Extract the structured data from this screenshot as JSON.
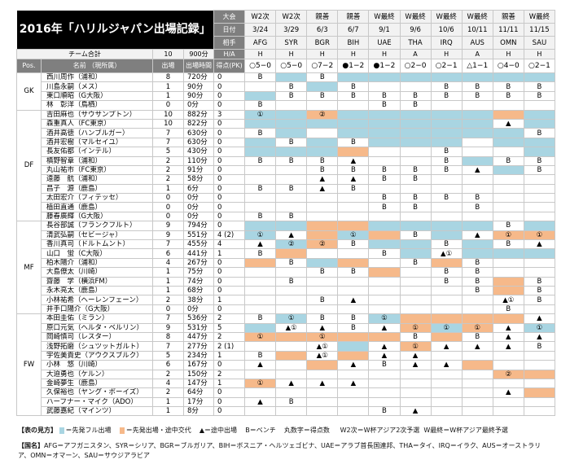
{
  "title": "2016年「ハリルジャパン出場記録」",
  "header_labels": {
    "competition": "大会",
    "date": "日付",
    "opponent": "相手",
    "home_away": "H/A"
  },
  "team_total": {
    "label": "チーム合計",
    "apps": "10",
    "minutes": "900分"
  },
  "column_headers": {
    "pos": "Pos.",
    "name": "名前 （現所属）",
    "apps": "出場",
    "minutes": "出場時間",
    "goals": "得点(PK)"
  },
  "matches": [
    {
      "comp": "W2次",
      "date": "3/24",
      "opp": "AFG",
      "ha": "H",
      "result": "○5−0"
    },
    {
      "comp": "W2次",
      "date": "3/29",
      "opp": "SYR",
      "ha": "H",
      "result": "○5−0"
    },
    {
      "comp": "親善",
      "date": "6/3",
      "opp": "BGR",
      "ha": "H",
      "result": "○7−2"
    },
    {
      "comp": "親善",
      "date": "6/7",
      "opp": "BIH",
      "ha": "H",
      "result": "●1−2"
    },
    {
      "comp": "W最終",
      "date": "9/1",
      "opp": "UAE",
      "ha": "H",
      "result": "●1−2"
    },
    {
      "comp": "W最終",
      "date": "9/6",
      "opp": "THA",
      "ha": "A",
      "result": "○2−0"
    },
    {
      "comp": "W最終",
      "date": "10/6",
      "opp": "IRQ",
      "ha": "H",
      "result": "○2−1"
    },
    {
      "comp": "W最終",
      "date": "10/11",
      "opp": "AUS",
      "ha": "A",
      "result": "△1−1"
    },
    {
      "comp": "親善",
      "date": "11/11",
      "opp": "OMN",
      "ha": "H",
      "result": "○4−0"
    },
    {
      "comp": "W最終",
      "date": "11/15",
      "opp": "SAU",
      "ha": "H",
      "result": "○2−1"
    }
  ],
  "colors": {
    "full_start": "#a9d5e2",
    "start_subbed": "#f6b98a",
    "header_dark": "#7f7f7f",
    "title_bg": "#000000"
  },
  "groups": [
    {
      "pos": "GK",
      "players": [
        {
          "name": "西川周作（浦和）",
          "apps": "8",
          "min": "720分",
          "goals": "0",
          "cells": [
            "B",
            "F",
            "B",
            "F",
            "F",
            "F",
            "F",
            "F",
            "F",
            "F"
          ]
        },
        {
          "name": "川島永嗣（メス）",
          "apps": "1",
          "min": "90分",
          "goals": "0",
          "cells": [
            "",
            "B",
            "F",
            "B",
            "",
            "",
            "B",
            "B",
            "B",
            "B"
          ]
        },
        {
          "name": "東口順昭（G大阪）",
          "apps": "1",
          "min": "90分",
          "goals": "0",
          "cells": [
            "F",
            "B",
            "B",
            "B",
            "B",
            "B",
            "B",
            "B",
            "B",
            "B"
          ]
        },
        {
          "name": "林　彰洋（鳥栖）",
          "apps": "0",
          "min": "0分",
          "goals": "0",
          "cells": [
            "B",
            "",
            "",
            "",
            "B",
            "B",
            "",
            "",
            "",
            ""
          ]
        }
      ]
    },
    {
      "pos": "DF",
      "players": [
        {
          "name": "吉田麻也（サウサンプトン）",
          "apps": "10",
          "min": "882分",
          "goals": "3",
          "cells": [
            "F①",
            "F",
            "S②",
            "F",
            "F",
            "F",
            "F",
            "F",
            "S",
            "F"
          ]
        },
        {
          "name": "森重真人（FC東京）",
          "apps": "10",
          "min": "822分",
          "goals": "0",
          "cells": [
            "F",
            "F",
            "F",
            "F",
            "F",
            "F",
            "F",
            "F",
            "▲",
            "F"
          ]
        },
        {
          "name": "酒井高徳（ハンブルガー）",
          "apps": "7",
          "min": "630分",
          "goals": "0",
          "cells": [
            "B",
            "F",
            "",
            "F",
            "F",
            "F",
            "F",
            "F",
            "F",
            "B"
          ]
        },
        {
          "name": "酒井宏樹（マルセイユ）",
          "apps": "7",
          "min": "630分",
          "goals": "0",
          "cells": [
            "F",
            "B",
            "F",
            "B",
            "F",
            "F",
            "F",
            "",
            "F",
            "F"
          ]
        },
        {
          "name": "長友佑都（インテル）",
          "apps": "5",
          "min": "430分",
          "goals": "0",
          "cells": [
            "F",
            "F",
            "F",
            "S",
            "",
            "",
            "B",
            "",
            "",
            "F"
          ]
        },
        {
          "name": "槙野智章（浦和）",
          "apps": "2",
          "min": "110分",
          "goals": "0",
          "cells": [
            "B",
            "B",
            "B",
            "▲",
            "",
            "",
            "B",
            "F",
            "B",
            "B"
          ]
        },
        {
          "name": "丸山祐市（FC東京）",
          "apps": "2",
          "min": "91分",
          "goals": "0",
          "cells": [
            "",
            "",
            "B",
            "B",
            "B",
            "B",
            "B",
            "▲",
            "F",
            "B"
          ]
        },
        {
          "name": "遠藤　航（浦和）",
          "apps": "2",
          "min": "58分",
          "goals": "0",
          "cells": [
            "",
            "",
            "▲",
            "▲",
            "B",
            "B",
            "",
            "",
            "",
            ""
          ]
        },
        {
          "name": "昌子　源（鹿島）",
          "apps": "1",
          "min": "6分",
          "goals": "0",
          "cells": [
            "B",
            "B",
            "▲",
            "B",
            "",
            "",
            "",
            "",
            "",
            ""
          ]
        },
        {
          "name": "太田宏介（フィテッセ）",
          "apps": "0",
          "min": "0分",
          "goals": "0",
          "cells": [
            "",
            "",
            "",
            "",
            "B",
            "B",
            "B",
            "B",
            "",
            ""
          ]
        },
        {
          "name": "植田直通（鹿島）",
          "apps": "0",
          "min": "0分",
          "goals": "0",
          "cells": [
            "",
            "",
            "",
            "",
            "B",
            "B",
            "",
            "B",
            "",
            ""
          ]
        },
        {
          "name": "藤春廣輝（G大阪）",
          "apps": "0",
          "min": "0分",
          "goals": "0",
          "cells": [
            "B",
            "B",
            "",
            "",
            "",
            "",
            "",
            "",
            "",
            ""
          ]
        }
      ]
    },
    {
      "pos": "MF",
      "players": [
        {
          "name": "長谷部誠（フランクフルト）",
          "apps": "9",
          "min": "794分",
          "goals": "0",
          "cells": [
            "F",
            "F",
            "S",
            "S",
            "F",
            "F",
            "F",
            "F",
            "B",
            "F"
          ]
        },
        {
          "name": "清武弘嗣（セビージャ）",
          "apps": "9",
          "min": "551分",
          "goals": "4 (2)",
          "cells": [
            "F①",
            "▲",
            "S",
            "F①",
            "S",
            "B",
            "F",
            "▲",
            "S①",
            "S①"
          ]
        },
        {
          "name": "香川真司（ドルトムント）",
          "apps": "7",
          "min": "455分",
          "goals": "4",
          "cells": [
            "▲",
            "F②",
            "S②",
            "B",
            "F",
            "F",
            "B",
            "F",
            "B",
            "▲"
          ]
        },
        {
          "name": "山口　蛍（C大阪）",
          "apps": "6",
          "min": "441分",
          "goals": "1",
          "cells": [
            "B",
            "S",
            "",
            "",
            "B",
            "F",
            "▲①",
            "F",
            "F",
            "F"
          ]
        },
        {
          "name": "柏木陽介（浦和）",
          "apps": "4",
          "min": "267分",
          "goals": "0",
          "cells": [
            "S",
            "B",
            "F",
            "S",
            "",
            "B",
            "S",
            "B",
            "",
            ""
          ]
        },
        {
          "name": "大島僚太（川崎）",
          "apps": "1",
          "min": "75分",
          "goals": "0",
          "cells": [
            "",
            "",
            "B",
            "B",
            "S",
            "",
            "B",
            "B",
            "",
            ""
          ]
        },
        {
          "name": "齋藤　学（横浜FM）",
          "apps": "1",
          "min": "74分",
          "goals": "0",
          "cells": [
            "",
            "B",
            "",
            "",
            "",
            "",
            "B",
            "B",
            "S",
            "B"
          ]
        },
        {
          "name": "永木亮太（鹿島）",
          "apps": "1",
          "min": "68分",
          "goals": "0",
          "cells": [
            "",
            "",
            "",
            "",
            "",
            "",
            "",
            "B",
            "S",
            "B"
          ]
        },
        {
          "name": "小林祐希（ヘーレンフェーン）",
          "apps": "2",
          "min": "38分",
          "goals": "1",
          "cells": [
            "",
            "",
            "B",
            "▲",
            "",
            "",
            "",
            "",
            "▲①",
            "B"
          ]
        },
        {
          "name": "井手口陽介（G大阪）",
          "apps": "0",
          "min": "0分",
          "goals": "0",
          "cells": [
            "",
            "",
            "",
            "",
            "",
            "",
            "",
            "",
            "B",
            ""
          ]
        }
      ]
    },
    {
      "pos": "FW",
      "players": [
        {
          "name": "本田圭佑（ミラン）",
          "apps": "7",
          "min": "536分",
          "goals": "2",
          "cells": [
            "B",
            "F①",
            "B",
            "B",
            "F①",
            "S",
            "S",
            "S",
            "S",
            "▲"
          ]
        },
        {
          "name": "原口元気（ヘルタ・ベルリン）",
          "apps": "9",
          "min": "531分",
          "goals": "5",
          "cells": [
            "F",
            "▲①",
            "▲",
            "B",
            "▲",
            "S①",
            "F①",
            "S①",
            "▲",
            "F①"
          ]
        },
        {
          "name": "岡崎慎司（レスター）",
          "apps": "8",
          "min": "447分",
          "goals": "2",
          "cells": [
            "S①",
            "S",
            "S①",
            "S",
            "S",
            "B",
            "S",
            "B",
            "▲",
            "▲"
          ]
        },
        {
          "name": "浅野拓磨（シュツットガルト）",
          "apps": "7",
          "min": "277分",
          "goals": "2 (1)",
          "cells": [
            "",
            "",
            "▲①",
            "F",
            "▲",
            "S①",
            "▲",
            "▲",
            "▲",
            "B"
          ]
        },
        {
          "name": "宇佐美貴史（アウクスブルク）",
          "apps": "5",
          "min": "234分",
          "goals": "1",
          "cells": [
            "B",
            "S",
            "▲①",
            "S",
            "▲",
            "▲",
            "",
            "",
            "",
            ""
          ]
        },
        {
          "name": "小林　悠（川崎）",
          "apps": "6",
          "min": "167分",
          "goals": "0",
          "cells": [
            "▲",
            "",
            "S",
            "▲",
            "B",
            "▲",
            "▲",
            "S",
            "",
            ""
          ]
        },
        {
          "name": "大迫勇也（ケルン）",
          "apps": "2",
          "min": "150分",
          "goals": "2",
          "cells": [
            "",
            "",
            "",
            "",
            "",
            "",
            "",
            "",
            "S②",
            "S"
          ]
        },
        {
          "name": "金崎夢生（鹿島）",
          "apps": "4",
          "min": "147分",
          "goals": "1",
          "cells": [
            "S①",
            "▲",
            "▲",
            "▲",
            "",
            "",
            "",
            "",
            "",
            ""
          ]
        },
        {
          "name": "久保裕也（ヤング・ボーイズ）",
          "apps": "2",
          "min": "64分",
          "goals": "0",
          "cells": [
            "",
            "",
            "",
            "",
            "",
            "",
            "",
            "",
            "▲",
            "S"
          ]
        },
        {
          "name": "ハーフナー・マイク（ADO）",
          "apps": "1",
          "min": "17分",
          "goals": "0",
          "cells": [
            "▲",
            "B",
            "",
            "",
            "",
            "",
            "",
            "",
            "",
            ""
          ]
        },
        {
          "name": "武藤嘉紀（マインツ）",
          "apps": "1",
          "min": "8分",
          "goals": "0",
          "cells": [
            "",
            "",
            "",
            "",
            "B",
            "▲",
            "",
            "",
            "",
            ""
          ]
        }
      ]
    }
  ],
  "legend": {
    "heading": "【表の見方】",
    "full": "＝先発フル出場",
    "sub_off": "＝先発出場・途中交代",
    "sub_on": "▲＝途中出場",
    "bench": "B＝ベンチ",
    "goals": "丸数字＝得点数",
    "w2": "W2次＝W杯アジア2次予選",
    "wf": "W最終＝W杯アジア最終予選"
  },
  "countries": {
    "heading": "【国名】",
    "text": "AFG＝アフガニスタン、SYR＝シリア、BGR＝ブルガリア、BIH＝ボスニア・ヘルツェゴビナ、UAE＝アラブ首長国連邦、THA＝タイ、IRQ＝イラク、AUS＝オーストラリア、OMN＝オマーン、SAU＝サウジアラビア"
  }
}
